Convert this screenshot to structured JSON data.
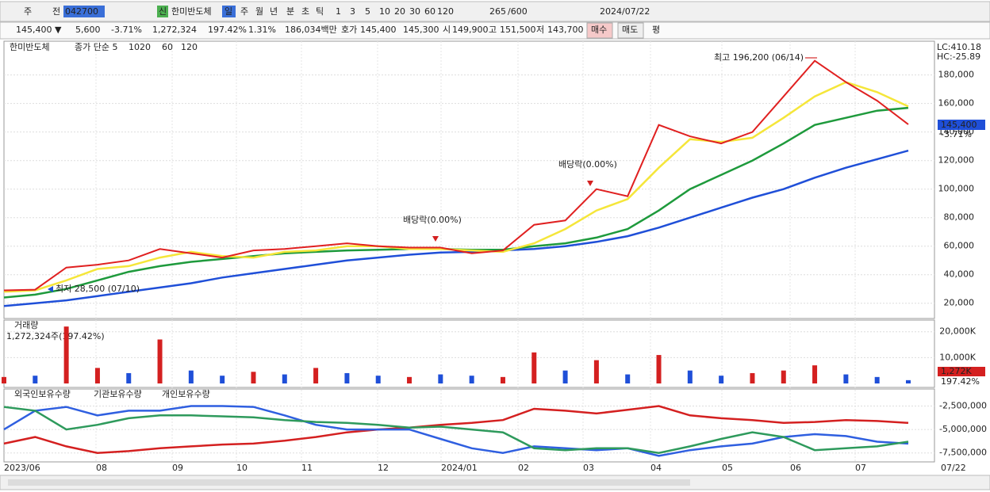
{
  "toolbar": {
    "row1": [
      "주",
      "전",
      "042700",
      "신",
      "한미반도체",
      "일",
      "주",
      "월",
      "년",
      "분",
      "초",
      "틱",
      "1",
      "3",
      "5",
      "10",
      "20",
      "30",
      "60",
      "120",
      "265",
      "/600",
      "2024/07/22"
    ],
    "row2": [
      "145,400 ▼",
      "5,600",
      "-3.71%",
      "1,272,324",
      "197.42%",
      "1.31%",
      "186,034백만",
      "호가",
      "145,400",
      "145,300",
      "시",
      "149,900",
      "고",
      "151,500",
      "저",
      "143,700",
      "매수",
      "매도",
      "평"
    ]
  },
  "price_chart": {
    "type": "line",
    "legend": [
      "한미반도체",
      "종가 단순 5",
      "10",
      "20",
      "60",
      "120"
    ],
    "ylim": [
      9300,
      203700
    ],
    "yticks": [
      {
        "value": 20000,
        "label": "20,000"
      },
      {
        "value": 40000,
        "label": "40,000"
      },
      {
        "value": 60000,
        "label": "60,000"
      },
      {
        "value": 80000,
        "label": "80,000"
      },
      {
        "value": 100000,
        "label": "100,000"
      },
      {
        "value": 120000,
        "label": "120,000"
      },
      {
        "value": 140000,
        "label": "140,000"
      },
      {
        "value": 160000,
        "label": "160,000"
      },
      {
        "value": 180000,
        "label": "180,000"
      }
    ],
    "series": [
      {
        "color": "#1f4fd8",
        "values": [
          18000,
          20000,
          22000,
          25000,
          28000,
          31000,
          34000,
          38000,
          41000,
          44000,
          47000,
          50000,
          52000,
          54000,
          55500,
          56000,
          57000,
          58000,
          60000,
          63000,
          67000,
          73000,
          80000,
          87000,
          94000,
          100000,
          108000,
          115000,
          121000,
          127000
        ]
      },
      {
        "color": "#1e9a3c",
        "values": [
          24000,
          26000,
          30000,
          36000,
          42000,
          46000,
          49000,
          51000,
          53000,
          55000,
          56000,
          57000,
          57500,
          58000,
          58000,
          57500,
          57500,
          60000,
          62000,
          66000,
          72000,
          85000,
          100000,
          110000,
          120000,
          132000,
          145000,
          150000,
          155000,
          157000
        ]
      },
      {
        "color": "#f5e63a",
        "values": [
          28000,
          29000,
          36000,
          44000,
          46000,
          52000,
          56000,
          53000,
          52000,
          56000,
          57000,
          60000,
          60000,
          58000,
          58000,
          57000,
          56000,
          62000,
          72000,
          85000,
          93000,
          115000,
          135000,
          133000,
          136000,
          150000,
          165000,
          175000,
          168000,
          158000
        ]
      },
      {
        "color": "#e02020",
        "values": [
          29000,
          29500,
          45000,
          47000,
          50000,
          58000,
          55000,
          52000,
          57000,
          58000,
          60000,
          62000,
          60000,
          59000,
          59000,
          55000,
          57000,
          75000,
          78000,
          100000,
          95000,
          145000,
          137000,
          132000,
          140000,
          165000,
          190000,
          175000,
          162000,
          145400
        ]
      }
    ],
    "annotations": [
      "최고 196,200 (06/14)",
      "최저 28,500 (07/10)",
      "배당락(0.00%)",
      "배당락(0.00%)"
    ],
    "corner": [
      "LC:410.18",
      "HC:-25.89"
    ],
    "last_price": "145,400",
    "last_change": "-3.71%"
  },
  "volume_chart": {
    "type": "bar",
    "legend": "거래량",
    "summary": "1,272,324주(197.42%)",
    "ylim": [
      0,
      24500
    ],
    "yticks": [
      {
        "value": 10000,
        "label": "10,000K"
      },
      {
        "value": 20000,
        "label": "20,000K"
      }
    ],
    "values": [
      2500,
      3000,
      22000,
      6000,
      4000,
      17000,
      5000,
      3000,
      4500,
      3500,
      6000,
      4000,
      3000,
      2500,
      3500,
      3000,
      2500,
      12000,
      5000,
      9000,
      3500,
      11000,
      5000,
      3000,
      4000,
      5000,
      7000,
      3500,
      2500,
      1272
    ],
    "colors": [
      "#d42020",
      "#1f4fd8",
      "#d42020",
      "#d42020",
      "#1f4fd8",
      "#d42020",
      "#1f4fd8",
      "#1f4fd8",
      "#d42020",
      "#1f4fd8",
      "#d42020",
      "#1f4fd8",
      "#1f4fd8",
      "#d42020",
      "#1f4fd8",
      "#1f4fd8",
      "#d42020",
      "#d42020",
      "#1f4fd8",
      "#d42020",
      "#1f4fd8",
      "#d42020",
      "#1f4fd8",
      "#1f4fd8",
      "#d42020",
      "#d42020",
      "#d42020",
      "#1f4fd8",
      "#1f4fd8",
      "#1f4fd8"
    ],
    "last_label": "1,272K",
    "last_pct": "197.42%"
  },
  "investor_chart": {
    "type": "line",
    "ylim": [
      -8450000,
      -690000
    ],
    "yticks": [
      {
        "value": -2500000,
        "label": "-2,500,000"
      },
      {
        "value": -5000000,
        "label": "-5,000,000"
      },
      {
        "value": -7500000,
        "label": "-7,500,000"
      }
    ],
    "series": [
      {
        "name": "외국인보유수량",
        "color": "#d42020",
        "values": [
          -6500000,
          -5800000,
          -6800000,
          -7500000,
          -7300000,
          -7000000,
          -6800000,
          -6600000,
          -6500000,
          -6200000,
          -5800000,
          -5300000,
          -5000000,
          -4800000,
          -4500000,
          -4300000,
          -4000000,
          -2800000,
          -3000000,
          -3300000,
          -2900000,
          -2500000,
          -3500000,
          -3800000,
          -4000000,
          -4300000,
          -4200000,
          -4000000,
          -4100000,
          -4300000
        ]
      },
      {
        "name": "기관보유수량",
        "color": "#2f5fe0",
        "values": [
          -5000000,
          -3000000,
          -2600000,
          -3500000,
          -3000000,
          -3000000,
          -2500000,
          -2500000,
          -2600000,
          -3500000,
          -4500000,
          -5000000,
          -5000000,
          -5000000,
          -6000000,
          -7000000,
          -7500000,
          -6800000,
          -7000000,
          -7200000,
          -7000000,
          -7800000,
          -7200000,
          -6800000,
          -6500000,
          -5800000,
          -5500000,
          -5700000,
          -6300000,
          -6500000
        ]
      },
      {
        "name": "개인보유수량",
        "color": "#2e9a5c",
        "values": [
          -2600000,
          -3000000,
          -5000000,
          -4500000,
          -3800000,
          -3500000,
          -3500000,
          -3600000,
          -3700000,
          -4000000,
          -4200000,
          -4300000,
          -4500000,
          -4800000,
          -4700000,
          -5000000,
          -5300000,
          -7000000,
          -7200000,
          -7000000,
          -7000000,
          -7500000,
          -6800000,
          -6000000,
          -5300000,
          -5800000,
          -7200000,
          -7000000,
          -6800000,
          -6300000
        ]
      }
    ]
  },
  "x_labels": [
    "2023/06",
    "08",
    "09",
    "10",
    "11",
    "12",
    "2024/01",
    "02",
    "03",
    "04",
    "05",
    "06",
    "07",
    "07/22"
  ]
}
